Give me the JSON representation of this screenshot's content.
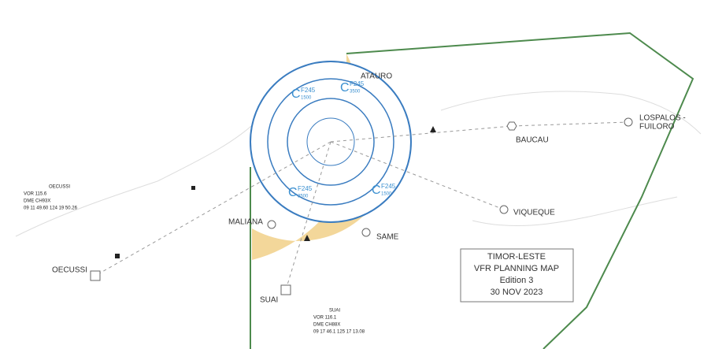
{
  "title_box": {
    "lines": [
      "TIMOR-LESTE",
      "VFR PLANNING MAP",
      "Edition 3",
      "30 NOV 2023"
    ]
  },
  "places": [
    "ATAURO",
    "BAUCAU",
    "LOSPALOS -",
    "FUILORO",
    "VIQUEQUE",
    "MALIANA",
    "SAME",
    "SUAI",
    "OECUSSI"
  ],
  "info_boxes": {
    "oecussi": [
      "OECUSSI",
      "VOR 115.6",
      "DME CH93X",
      "09 11 49.60 124 19 50.26"
    ],
    "suai": [
      "SUAI",
      "VOR 116.1",
      "DME CH88X",
      "09 17 46.1 125 17 13.08"
    ]
  },
  "airspace_labels": [
    {
      "class": "C",
      "level": "F245",
      "base": "1500"
    },
    {
      "class": "C",
      "level": "F245",
      "base": "3500"
    },
    {
      "class": "C",
      "level": "F245",
      "base": "3500"
    },
    {
      "class": "C",
      "level": "F245",
      "base": "1500"
    }
  ]
}
